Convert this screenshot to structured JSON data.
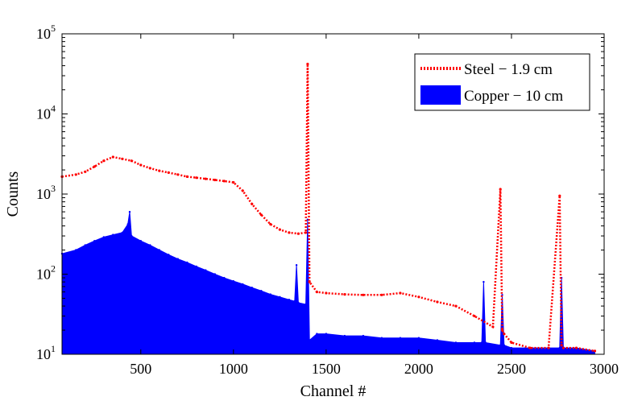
{
  "chart_data": {
    "type": "area",
    "title": "",
    "xlabel": "Channel #",
    "ylabel": "Counts",
    "xlim": [
      75,
      3000
    ],
    "ylim": [
      10,
      100000
    ],
    "y_scale": "log",
    "x_ticks": [
      500,
      1000,
      1500,
      2000,
      2500,
      3000
    ],
    "y_ticks": [
      {
        "value": 10,
        "base": "10",
        "exp": "1"
      },
      {
        "value": 100,
        "base": "10",
        "exp": "2"
      },
      {
        "value": 1000,
        "base": "10",
        "exp": "3"
      },
      {
        "value": 10000,
        "base": "10",
        "exp": "4"
      },
      {
        "value": 100000,
        "base": "10",
        "exp": "5"
      }
    ],
    "grid": false,
    "legend_position": "top-right",
    "series": [
      {
        "name": "Steel − 1.9 cm",
        "style": "dotted-line",
        "color": "#ff0000",
        "x": [
          75,
          150,
          200,
          250,
          300,
          350,
          400,
          450,
          500,
          550,
          600,
          650,
          700,
          750,
          800,
          850,
          900,
          950,
          1000,
          1050,
          1100,
          1150,
          1200,
          1250,
          1300,
          1350,
          1390,
          1400,
          1410,
          1450,
          1500,
          1600,
          1700,
          1800,
          1900,
          2000,
          2100,
          2200,
          2300,
          2400,
          2440,
          2450,
          2460,
          2500,
          2600,
          2700,
          2760,
          2770,
          2780,
          2850,
          2950
        ],
        "y": [
          1650,
          1750,
          1900,
          2200,
          2600,
          2900,
          2750,
          2600,
          2300,
          2100,
          1950,
          1850,
          1750,
          1650,
          1600,
          1550,
          1500,
          1450,
          1400,
          1100,
          750,
          550,
          420,
          360,
          330,
          320,
          330,
          42000,
          80,
          60,
          58,
          56,
          55,
          55,
          58,
          52,
          45,
          40,
          30,
          22,
          1150,
          20,
          18,
          14,
          12,
          12,
          950,
          13,
          12,
          12,
          11
        ]
      },
      {
        "name": "Copper − 10 cm",
        "style": "filled",
        "color": "#0000ff",
        "x": [
          75,
          150,
          200,
          250,
          300,
          350,
          400,
          430,
          440,
          450,
          500,
          550,
          600,
          650,
          700,
          750,
          800,
          850,
          900,
          950,
          1000,
          1050,
          1100,
          1150,
          1200,
          1250,
          1300,
          1330,
          1340,
          1350,
          1390,
          1400,
          1410,
          1450,
          1500,
          1600,
          1700,
          1800,
          1900,
          2000,
          2100,
          2200,
          2300,
          2340,
          2350,
          2360,
          2440,
          2450,
          2460,
          2500,
          2600,
          2700,
          2760,
          2770,
          2780,
          2850,
          2950
        ],
        "y": [
          180,
          200,
          230,
          260,
          290,
          310,
          330,
          420,
          600,
          300,
          260,
          230,
          200,
          175,
          155,
          140,
          125,
          112,
          100,
          90,
          82,
          75,
          68,
          62,
          56,
          52,
          48,
          46,
          130,
          44,
          42,
          480,
          15,
          18,
          18,
          17,
          17,
          16,
          16,
          16,
          15,
          14,
          14,
          14,
          80,
          14,
          13,
          55,
          13,
          12,
          12,
          12,
          12,
          90,
          12,
          12,
          11
        ]
      }
    ]
  }
}
